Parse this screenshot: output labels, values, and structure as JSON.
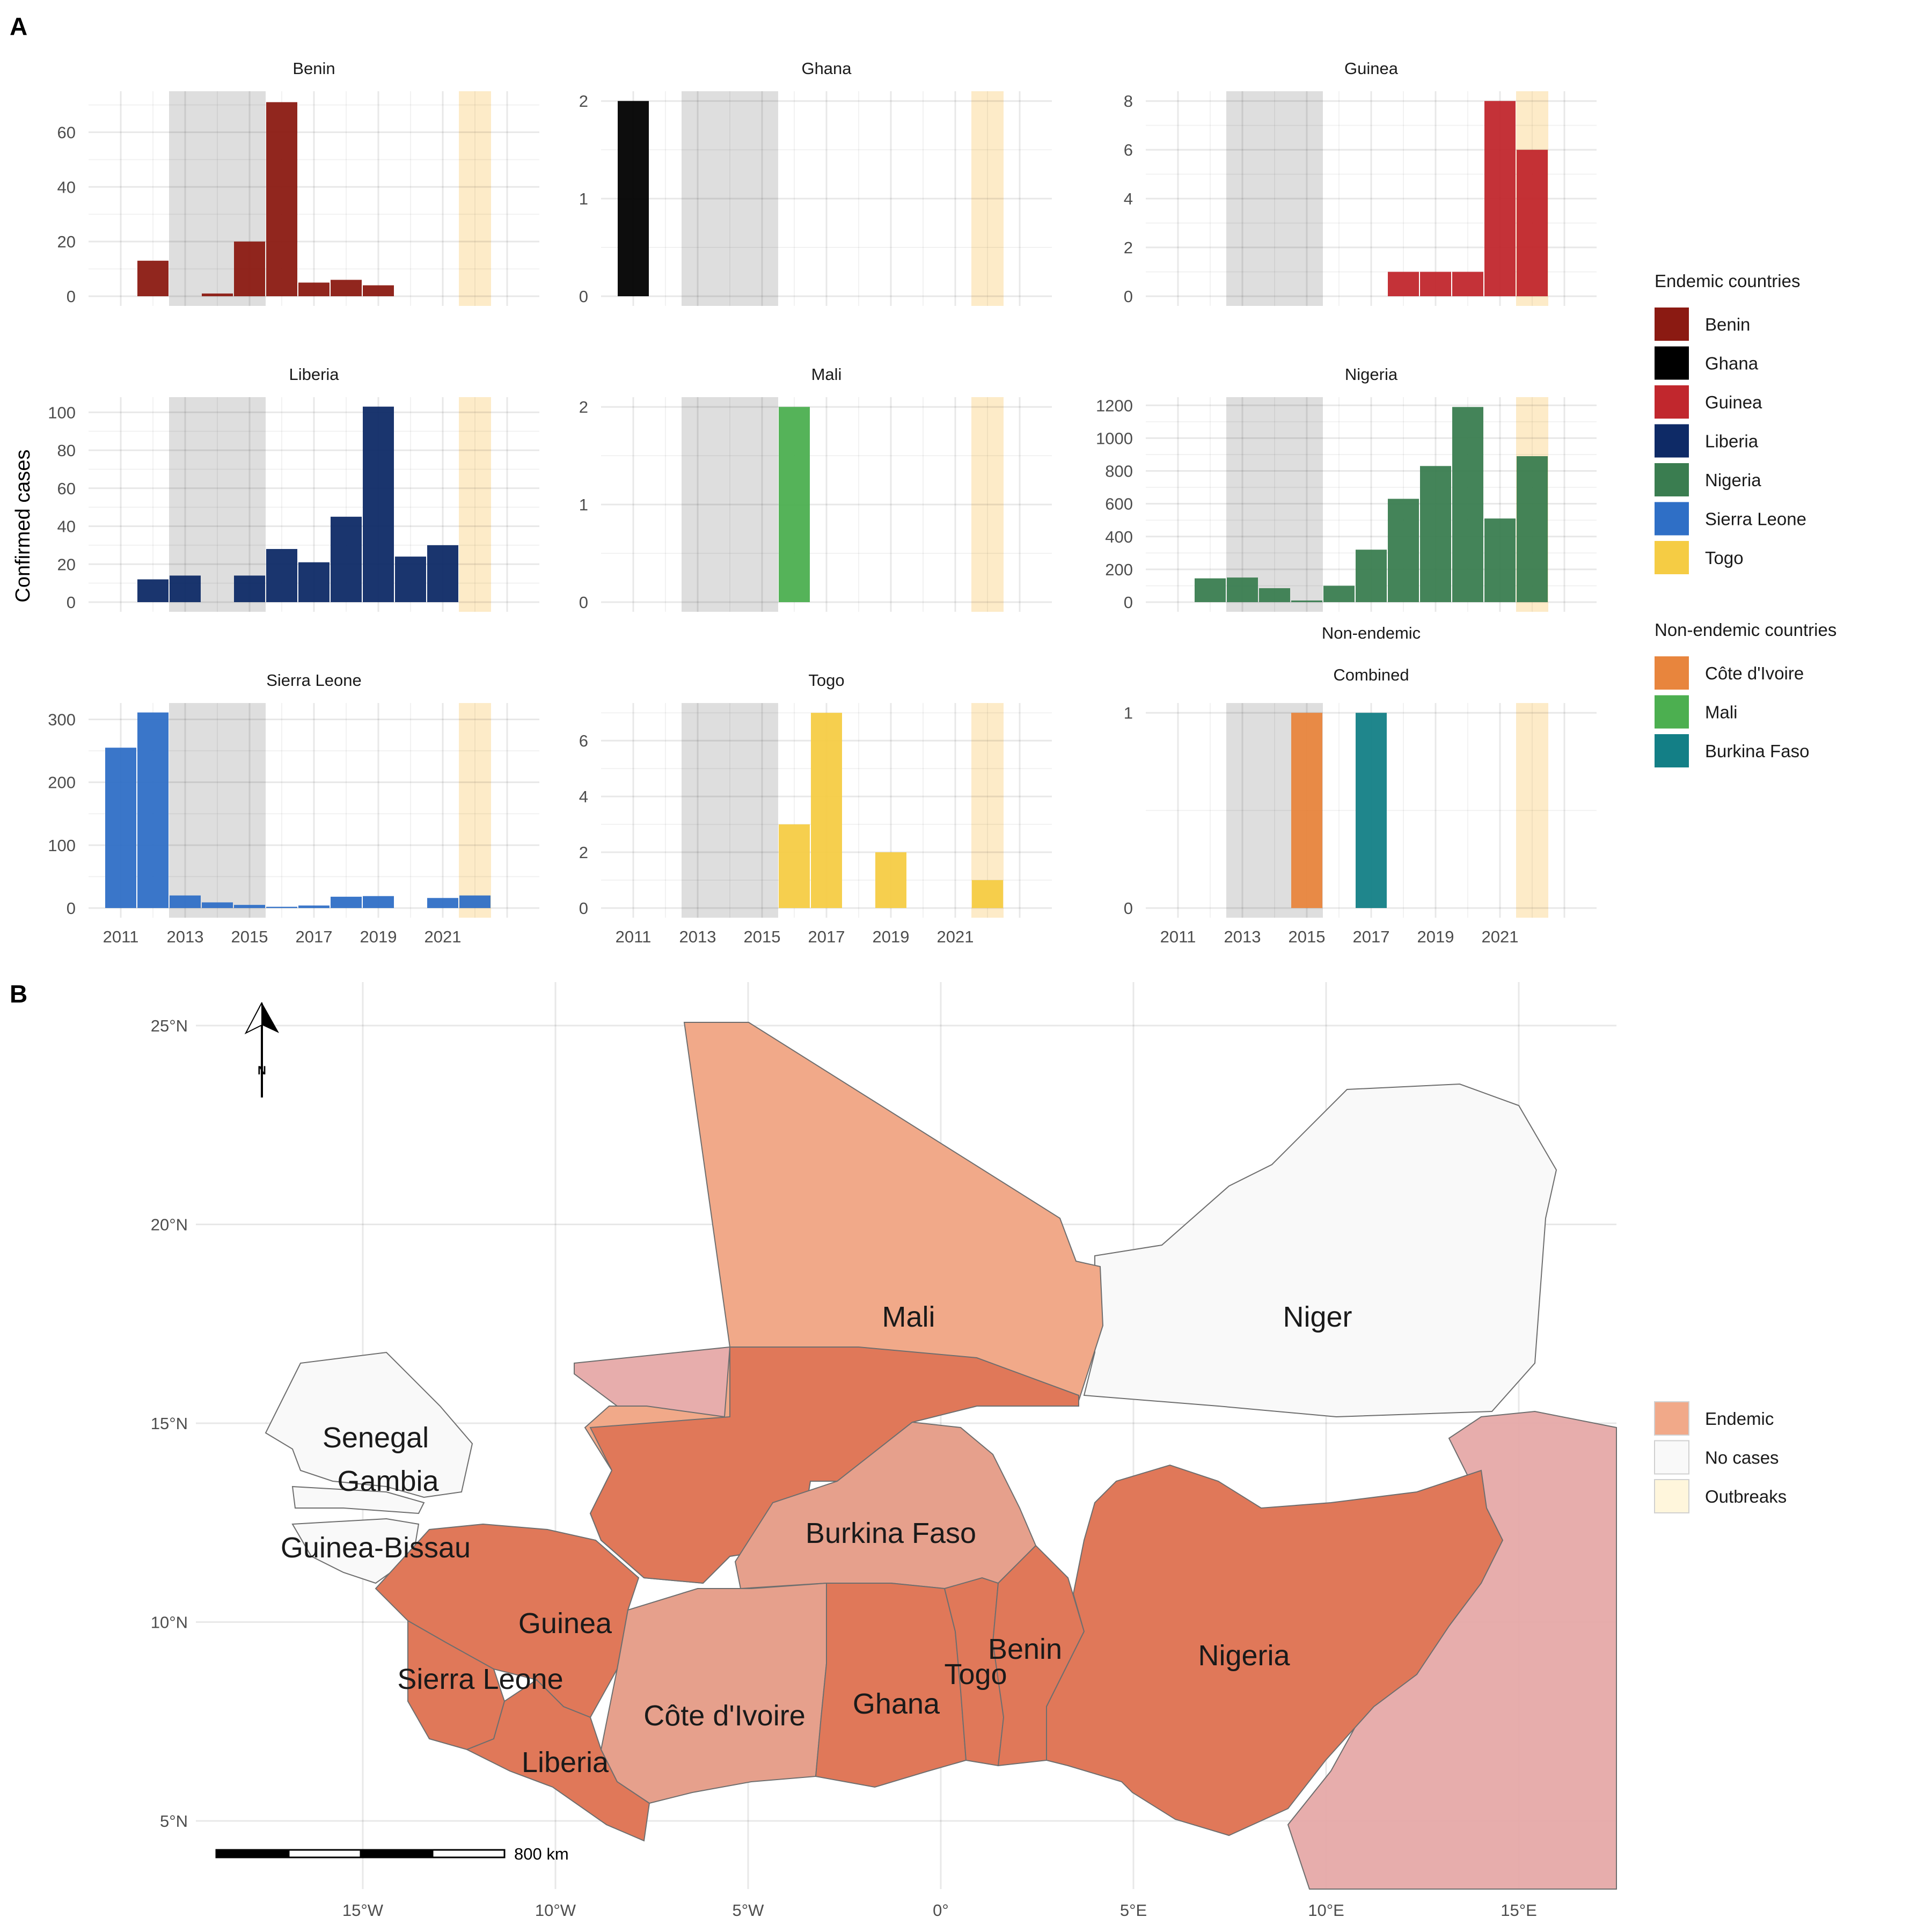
{
  "panel_labels": {
    "a": "A",
    "b": "B"
  },
  "y_axis_label": "Confirmed cases",
  "chart_data": [
    {
      "type": "bar",
      "title": "Benin",
      "color": "#8B1A12",
      "x": [
        2012,
        2014,
        2015,
        2016,
        2017,
        2018,
        2019
      ],
      "values": [
        13,
        1,
        20,
        71,
        5,
        6,
        4
      ],
      "ylim": [
        0,
        75
      ],
      "yticks": [
        0,
        20,
        40,
        60
      ],
      "xticks": [
        2011,
        2013,
        2015,
        2017,
        2019,
        2021
      ],
      "show_xticks": false
    },
    {
      "type": "bar",
      "title": "Ghana",
      "color": "#000000",
      "x": [
        2011
      ],
      "values": [
        2
      ],
      "ylim": [
        0,
        2.1
      ],
      "yticks": [
        0,
        1,
        2
      ],
      "xticks": [
        2011,
        2013,
        2015,
        2017,
        2019,
        2021
      ],
      "show_xticks": false
    },
    {
      "type": "bar",
      "title": "Guinea",
      "color": "#C1272D",
      "x": [
        2018,
        2019,
        2020,
        2021,
        2022
      ],
      "values": [
        1,
        1,
        1,
        8,
        6
      ],
      "ylim": [
        0,
        8.4
      ],
      "yticks": [
        0,
        2,
        4,
        6,
        8
      ],
      "xticks": [
        2011,
        2013,
        2015,
        2017,
        2019,
        2021
      ],
      "show_xticks": false
    },
    {
      "type": "bar",
      "title": "Liberia",
      "color": "#0E2A66",
      "x": [
        2012,
        2013,
        2015,
        2016,
        2017,
        2018,
        2019,
        2020,
        2021
      ],
      "values": [
        12,
        14,
        14,
        28,
        21,
        45,
        103,
        24,
        30
      ],
      "ylim": [
        0,
        108
      ],
      "yticks": [
        0,
        20,
        40,
        60,
        80,
        100
      ],
      "xticks": [
        2011,
        2013,
        2015,
        2017,
        2019,
        2021
      ],
      "show_xticks": false
    },
    {
      "type": "bar",
      "title": "Mali",
      "color": "#4CAF50",
      "x": [
        2016
      ],
      "values": [
        2
      ],
      "ylim": [
        0,
        2.1
      ],
      "yticks": [
        0,
        1,
        2
      ],
      "xticks": [
        2011,
        2013,
        2015,
        2017,
        2019,
        2021
      ],
      "show_xticks": false
    },
    {
      "type": "bar",
      "title": "Nigeria",
      "color": "#3A7D50",
      "x": [
        2012,
        2013,
        2014,
        2015,
        2016,
        2017,
        2018,
        2019,
        2020,
        2021,
        2022
      ],
      "values": [
        145,
        150,
        85,
        10,
        100,
        320,
        630,
        830,
        1190,
        510,
        890
      ],
      "ylim": [
        0,
        1250
      ],
      "yticks": [
        0,
        200,
        400,
        600,
        800,
        1000,
        1200
      ],
      "xticks": [
        2011,
        2013,
        2015,
        2017,
        2019,
        2021
      ],
      "show_xticks": false
    },
    {
      "type": "bar",
      "title": "Sierra Leone",
      "color": "#2F6FC6",
      "x": [
        2011,
        2012,
        2013,
        2014,
        2015,
        2016,
        2017,
        2018,
        2019,
        2021,
        2022
      ],
      "values": [
        255,
        311,
        20,
        9,
        5,
        2,
        4,
        18,
        19,
        16,
        20
      ],
      "ylim": [
        0,
        326
      ],
      "yticks": [
        0,
        100,
        200,
        300
      ],
      "xticks": [
        2011,
        2013,
        2015,
        2017,
        2019,
        2021
      ],
      "show_xticks": true
    },
    {
      "type": "bar",
      "title": "Togo",
      "color": "#F5CC44",
      "x": [
        2016,
        2017,
        2019,
        2022
      ],
      "values": [
        3,
        7,
        2,
        1
      ],
      "ylim": [
        0,
        7.35
      ],
      "yticks": [
        0,
        2,
        4,
        6
      ],
      "xticks": [
        2011,
        2013,
        2015,
        2017,
        2019,
        2021
      ],
      "show_xticks": true
    },
    {
      "type": "bar",
      "title_lines": [
        "Non-endemic",
        "Combined"
      ],
      "colors": [
        "#E8853D",
        "#137F86"
      ],
      "x": [
        2015,
        2017
      ],
      "values": [
        1,
        1
      ],
      "ylim": [
        0,
        1.05
      ],
      "yticks": [
        0,
        1
      ],
      "xticks": [
        2011,
        2013,
        2015,
        2017,
        2019,
        2021
      ],
      "show_xticks": true
    }
  ],
  "legend_endemic": {
    "title": "Endemic countries",
    "items": [
      {
        "label": "Benin",
        "color": "#8B1A12"
      },
      {
        "label": "Ghana",
        "color": "#000000"
      },
      {
        "label": "Guinea",
        "color": "#C1272D"
      },
      {
        "label": "Liberia",
        "color": "#0E2A66"
      },
      {
        "label": "Nigeria",
        "color": "#3A7D50"
      },
      {
        "label": "Sierra Leone",
        "color": "#2F6FC6"
      },
      {
        "label": "Togo",
        "color": "#F5CC44"
      }
    ]
  },
  "legend_nonendemic": {
    "title": "Non-endemic countries",
    "items": [
      {
        "label": "Côte d'Ivoire",
        "color": "#E8853D"
      },
      {
        "label": "Mali",
        "color": "#4CAF50"
      },
      {
        "label": "Burkina Faso",
        "color": "#137F86"
      }
    ]
  },
  "map": {
    "lon_ticks": [
      "15°W",
      "10°W",
      "5°W",
      "0°",
      "5°E",
      "10°E",
      "15°E"
    ],
    "lat_ticks": [
      "25°N",
      "20°N",
      "15°N",
      "10°N",
      "5°N"
    ],
    "north_label": "N",
    "scale_label": "800 km",
    "legend": [
      {
        "label": "Endemic",
        "color": "#F1A989"
      },
      {
        "label": "No cases",
        "color": "#F9F9F9"
      },
      {
        "label": "Outbreaks",
        "color": "#FFF6DC"
      }
    ],
    "countries": [
      "Mali",
      "Niger",
      "Senegal",
      "Gambia",
      "Guinea-Bissau",
      "Guinea",
      "Burkina Faso",
      "Benin",
      "Togo",
      "Nigeria",
      "Sierra Leone",
      "Côte d'Ivoire",
      "Ghana",
      "Liberia"
    ]
  }
}
